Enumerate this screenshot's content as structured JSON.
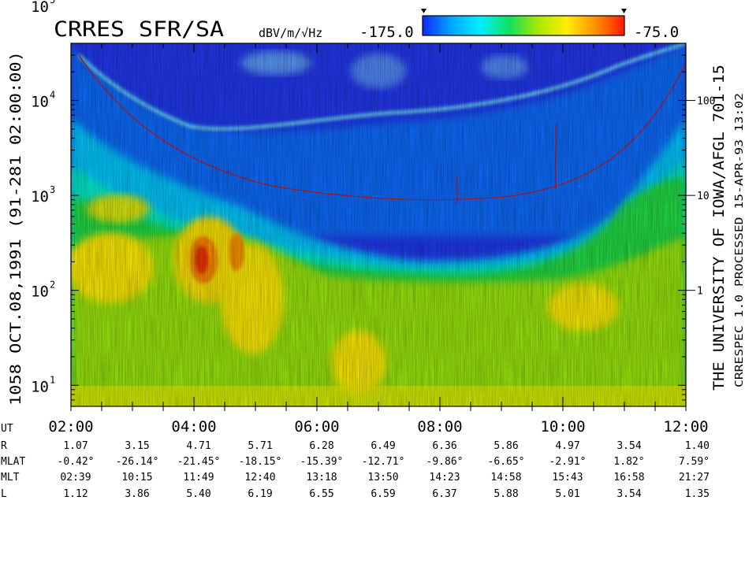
{
  "chart_data": {
    "type": "heatmap",
    "title": "CRRES SFR/SA",
    "units": "dBV/m/√Hz",
    "colorbar": {
      "min": -175.0,
      "max": -75.0,
      "min_label": "-175.0",
      "max_label": "-75.0",
      "colors": [
        "#1028ff",
        "#00a8ff",
        "#00eeff",
        "#10e060",
        "#a8e800",
        "#ffee00",
        "#ff9000",
        "#ff1800"
      ]
    },
    "left_label": "1058    OCT.08,1991    (91-281 02:00:00)",
    "right_label": "THE UNIVERSITY OF IOWA/AFGL 701-15",
    "right_label2": "CRRESPEC 1.0   PROCESSED 15-APR-93  13:02",
    "y_axis": {
      "scale": "log",
      "range": [
        6,
        40000
      ],
      "ticks": [
        {
          "v": 10,
          "b": "10",
          "e": "1"
        },
        {
          "v": 100,
          "b": "10",
          "e": "2"
        },
        {
          "v": 1000,
          "b": "10",
          "e": "3"
        },
        {
          "v": 10000,
          "b": "10",
          "e": "4"
        },
        {
          "v": 100000,
          "b": "10",
          "e": "5"
        }
      ]
    },
    "right_axis_ticks": [
      {
        "v": 100,
        "label": "1"
      },
      {
        "v": 1000,
        "label": "10"
      },
      {
        "v": 10000,
        "label": "100"
      }
    ],
    "x_axis": {
      "range": [
        2,
        12
      ],
      "ticks": [
        {
          "v": 2,
          "label": "02:00"
        },
        {
          "v": 4,
          "label": "04:00"
        },
        {
          "v": 6,
          "label": "06:00"
        },
        {
          "v": 8,
          "label": "08:00"
        },
        {
          "v": 10,
          "label": "10:00"
        },
        {
          "v": 12,
          "label": "12:00"
        }
      ]
    },
    "ephemeris": {
      "rows": [
        {
          "label": "UT",
          "values": []
        },
        {
          "label": "R",
          "values": [
            "1.07",
            "3.15",
            "4.71",
            "5.71",
            "6.28",
            "6.49",
            "6.36",
            "5.86",
            "4.97",
            "3.54",
            "1.40"
          ]
        },
        {
          "label": "MLAT",
          "values": [
            "-0.42°",
            "-26.14°",
            "-21.45°",
            "-18.15°",
            "-15.39°",
            "-12.71°",
            "-9.86°",
            "-6.65°",
            "-2.91°",
            "1.82°",
            "7.59°"
          ]
        },
        {
          "label": "MLT",
          "values": [
            "02:39",
            "10:15",
            "11:49",
            "12:40",
            "13:18",
            "13:50",
            "14:23",
            "14:58",
            "15:43",
            "16:58",
            "21:27"
          ]
        },
        {
          "label": "L",
          "values": [
            "1.12",
            "3.86",
            "5.40",
            "6.19",
            "6.55",
            "6.59",
            "6.37",
            "5.88",
            "5.01",
            "3.54",
            "1.35"
          ]
        }
      ]
    }
  }
}
